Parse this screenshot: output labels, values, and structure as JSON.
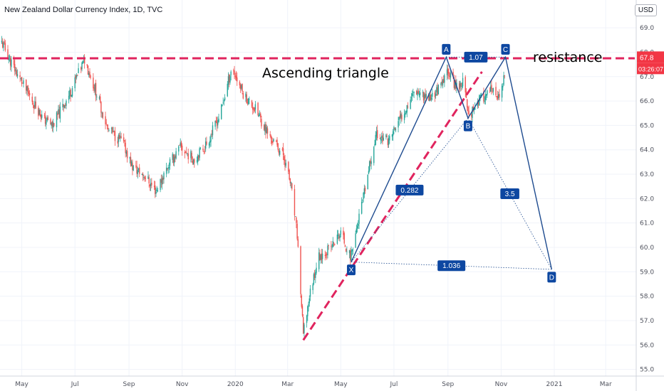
{
  "header": {
    "title": "New Zealand Dollar Currency Index, 1D, TVC",
    "currency": "USD"
  },
  "price_tags": {
    "price": "67.8",
    "countdown": "03:26:07"
  },
  "colors": {
    "up": "#26a69a",
    "down": "#ef5350",
    "pattern": "#1e4b8f",
    "trendline": "#e0245e",
    "price_tag": "#f23645",
    "badge": "#0d47a1"
  },
  "chart_data": {
    "type": "candlestick",
    "title": "New Zealand Dollar Currency Index, 1D, TVC",
    "xlabel": "",
    "ylabel": "",
    "ylim": [
      54.9,
      69.5
    ],
    "x_range": [
      "2019-04-06",
      "2021-04-05"
    ],
    "yticks": [
      55.0,
      56.0,
      57.0,
      58.0,
      59.0,
      60.0,
      61.0,
      62.0,
      63.0,
      64.0,
      65.0,
      66.0,
      67.0,
      68.0,
      69.0
    ],
    "ytick_labels": [
      "55.0",
      "56.0",
      "57.0",
      "58.0",
      "59.0",
      "60.0",
      "61.0",
      "62.0",
      "63.0",
      "64.0",
      "65.0",
      "66.0",
      "67.0",
      "68.0",
      "69.0"
    ],
    "xticks": [
      {
        "date": "2019-05-01",
        "label": "May"
      },
      {
        "date": "2019-07-01",
        "label": "Jul"
      },
      {
        "date": "2019-09-01",
        "label": "Sep"
      },
      {
        "date": "2019-11-01",
        "label": "Nov"
      },
      {
        "date": "2020-01-01",
        "label": "2020"
      },
      {
        "date": "2020-03-01",
        "label": "Mar"
      },
      {
        "date": "2020-05-01",
        "label": "May"
      },
      {
        "date": "2020-07-01",
        "label": "Jul"
      },
      {
        "date": "2020-09-01",
        "label": "Sep"
      },
      {
        "date": "2020-11-01",
        "label": "Nov"
      },
      {
        "date": "2021-01-01",
        "label": "2021"
      },
      {
        "date": "2021-03-01",
        "label": "Mar"
      }
    ],
    "price_path": [
      [
        "2019-04-08",
        68.4
      ],
      [
        "2019-04-20",
        67.5
      ],
      [
        "2019-05-05",
        66.5
      ],
      [
        "2019-05-25",
        65.3
      ],
      [
        "2019-06-05",
        65.0
      ],
      [
        "2019-06-25",
        66.3
      ],
      [
        "2019-07-12",
        67.7
      ],
      [
        "2019-07-25",
        66.4
      ],
      [
        "2019-08-08",
        64.8
      ],
      [
        "2019-08-25",
        64.3
      ],
      [
        "2019-09-05",
        63.3
      ],
      [
        "2019-09-20",
        62.9
      ],
      [
        "2019-10-02",
        62.3
      ],
      [
        "2019-10-15",
        63.3
      ],
      [
        "2019-10-30",
        64.1
      ],
      [
        "2019-11-15",
        63.6
      ],
      [
        "2019-11-30",
        64.3
      ],
      [
        "2019-12-15",
        65.5
      ],
      [
        "2019-12-28",
        67.4
      ],
      [
        "2020-01-10",
        66.3
      ],
      [
        "2020-01-25",
        65.6
      ],
      [
        "2020-02-10",
        64.5
      ],
      [
        "2020-02-25",
        63.8
      ],
      [
        "2020-03-05",
        62.5
      ],
      [
        "2020-03-12",
        60.5
      ],
      [
        "2020-03-19",
        56.4
      ],
      [
        "2020-03-26",
        58.0
      ],
      [
        "2020-04-05",
        59.6
      ],
      [
        "2020-04-20",
        60.0
      ],
      [
        "2020-05-01",
        60.6
      ],
      [
        "2020-05-12",
        59.6
      ],
      [
        "2020-05-28",
        62.2
      ],
      [
        "2020-06-10",
        64.6
      ],
      [
        "2020-06-25",
        64.4
      ],
      [
        "2020-07-10",
        65.4
      ],
      [
        "2020-07-25",
        66.5
      ],
      [
        "2020-08-10",
        66.1
      ],
      [
        "2020-08-25",
        66.6
      ],
      [
        "2020-09-01",
        67.3
      ],
      [
        "2020-09-10",
        66.6
      ],
      [
        "2020-09-18",
        66.8
      ],
      [
        "2020-09-25",
        65.4
      ],
      [
        "2020-10-05",
        66.0
      ],
      [
        "2020-10-20",
        66.4
      ],
      [
        "2020-10-30",
        66.1
      ],
      [
        "2020-11-05",
        67.0
      ]
    ],
    "annotations": {
      "pattern_type": "XABCD",
      "ascending_triangle_text": "Ascending  triangle",
      "resistance_text": "resistance",
      "resistance_level": 67.75,
      "trendline": [
        [
          "2020-03-19",
          56.2
        ],
        [
          "2020-10-10",
          67.2
        ]
      ],
      "points": [
        {
          "name": "X",
          "date": "2020-05-13",
          "value": 59.4
        },
        {
          "name": "A",
          "date": "2020-08-30",
          "value": 67.8
        },
        {
          "name": "B",
          "date": "2020-09-24",
          "value": 65.3
        },
        {
          "name": "C",
          "date": "2020-11-06",
          "value": 67.8
        },
        {
          "name": "D",
          "date": "2020-12-29",
          "value": 59.1
        }
      ],
      "ratios": [
        {
          "label": "0.282",
          "from": "X",
          "to": "B"
        },
        {
          "label": "1.07",
          "from": "A",
          "to": "C"
        },
        {
          "label": "3.5",
          "from": "B",
          "to": "D"
        },
        {
          "label": "1.036",
          "from": "X",
          "to": "D"
        }
      ]
    }
  }
}
